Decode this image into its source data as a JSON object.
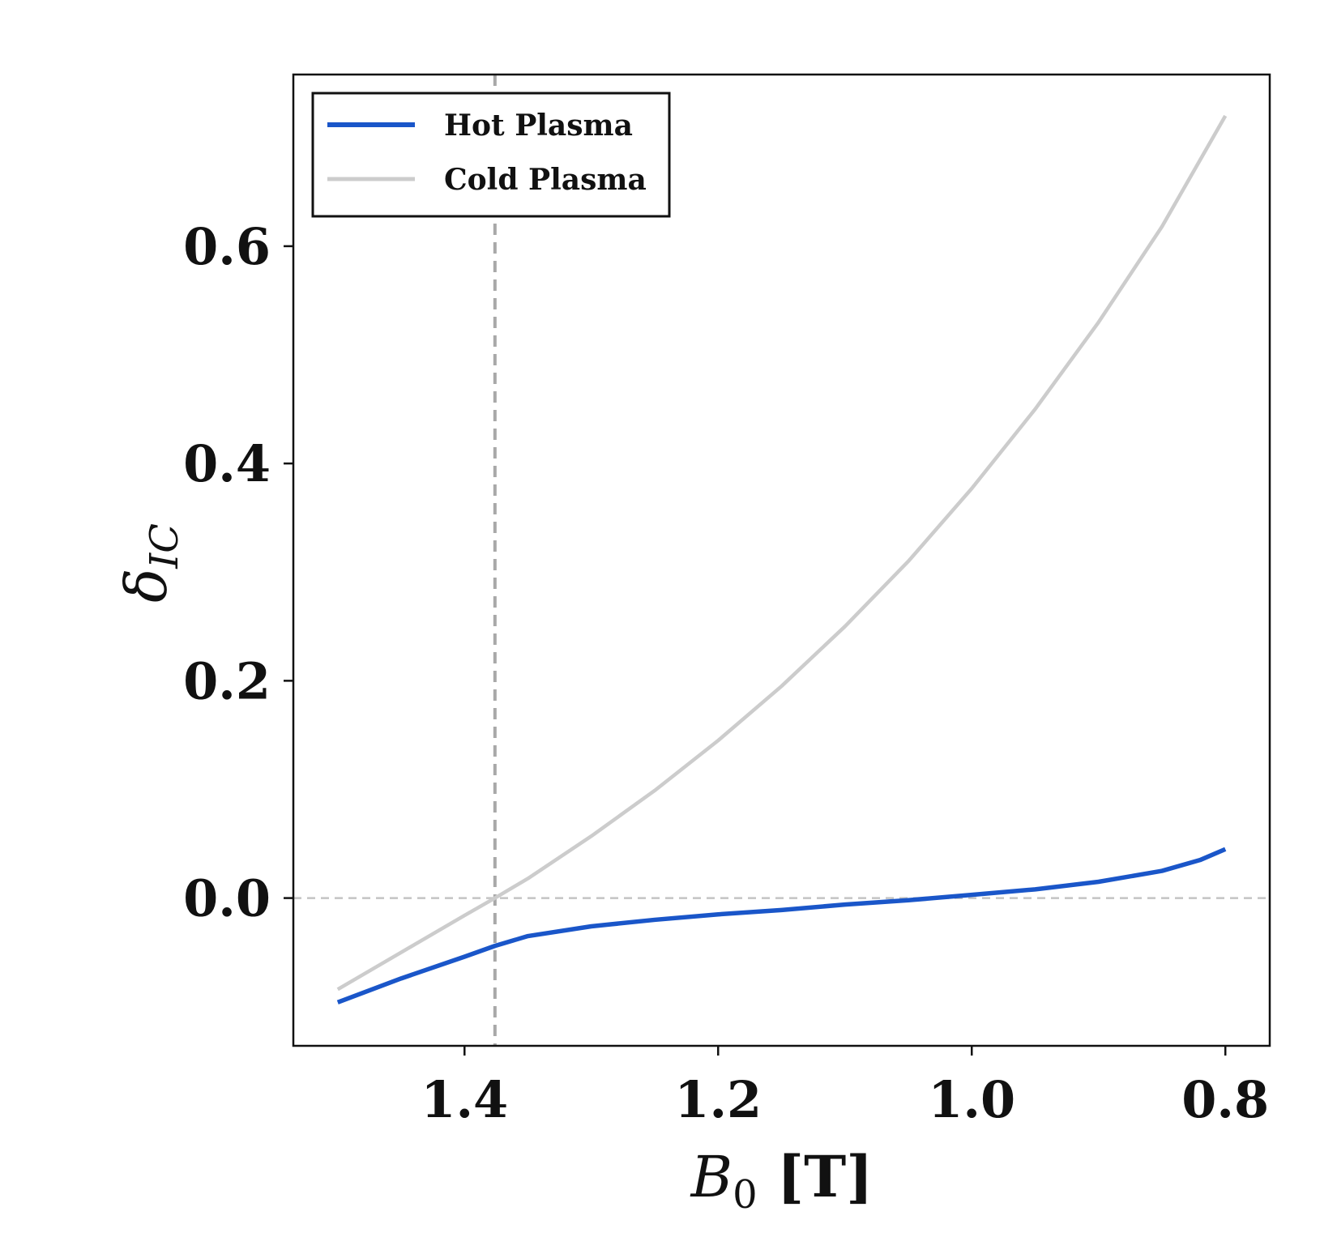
{
  "chart_data": {
    "type": "line",
    "xlabel": {
      "main": "B",
      "sub": "0",
      "unit": " [T]"
    },
    "ylabel": {
      "main": "δ",
      "sub": "IC"
    },
    "xlim": [
      1.535,
      0.765
    ],
    "ylim": [
      -0.136,
      0.758
    ],
    "x_reversed": true,
    "xticks": [
      1.4,
      1.2,
      1.0,
      0.8
    ],
    "xtick_labels": [
      "1.4",
      "1.2",
      "1.0",
      "0.8"
    ],
    "yticks": [
      0.0,
      0.2,
      0.4,
      0.6
    ],
    "ytick_labels": [
      "0.0",
      "0.2",
      "0.4",
      "0.6"
    ],
    "reference_lines": {
      "vertical_x": 1.376,
      "horizontal_y": 0.0
    },
    "legend": {
      "position": "top-left"
    },
    "series": [
      {
        "name": "Hot Plasma",
        "color": "#1a56c9",
        "x": [
          1.5,
          1.45,
          1.4,
          1.376,
          1.35,
          1.3,
          1.25,
          1.2,
          1.15,
          1.1,
          1.05,
          1.0,
          0.95,
          0.9,
          0.85,
          0.82,
          0.8
        ],
        "y": [
          -0.096,
          -0.074,
          -0.054,
          -0.044,
          -0.035,
          -0.026,
          -0.02,
          -0.015,
          -0.011,
          -0.006,
          -0.002,
          0.003,
          0.008,
          0.015,
          0.025,
          0.035,
          0.045
        ]
      },
      {
        "name": "Cold Plasma",
        "color": "#cccccc",
        "x": [
          1.5,
          1.45,
          1.4,
          1.376,
          1.35,
          1.3,
          1.25,
          1.2,
          1.15,
          1.1,
          1.05,
          1.0,
          0.95,
          0.9,
          0.85,
          0.8
        ],
        "y": [
          -0.084,
          -0.05,
          -0.016,
          0.0,
          0.018,
          0.057,
          0.099,
          0.145,
          0.195,
          0.25,
          0.31,
          0.377,
          0.45,
          0.53,
          0.618,
          0.72
        ]
      }
    ]
  }
}
